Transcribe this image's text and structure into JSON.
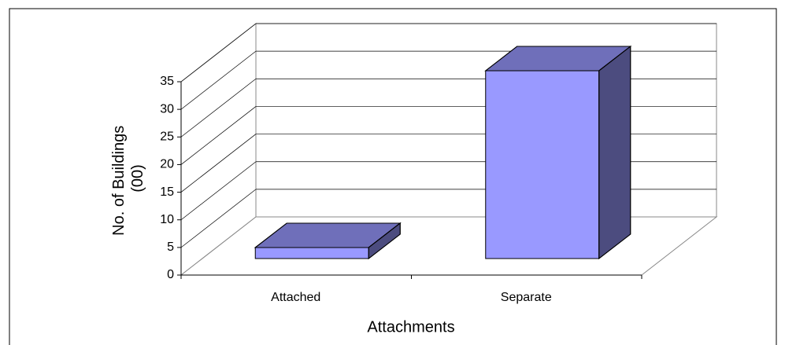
{
  "chart_data": {
    "type": "bar3d",
    "y_label": [
      "No. of Buildings",
      "(00)"
    ],
    "x_label": "Attachments",
    "categories": [
      "Attached",
      "Separate"
    ],
    "values": [
      2,
      34
    ],
    "color": "#9999ff",
    "ylim": [
      0,
      35
    ],
    "yticks": [
      0,
      5,
      10,
      15,
      20,
      25,
      30,
      35
    ],
    "grid": true
  }
}
